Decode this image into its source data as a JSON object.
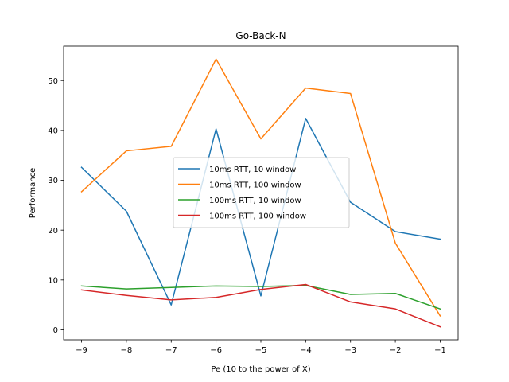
{
  "chart_data": {
    "type": "line",
    "title": "Go-Back-N",
    "xlabel": "Pe (10 to the power of X)",
    "ylabel": "Performance",
    "x": [
      -9,
      -8,
      -7,
      -6,
      -5,
      -4,
      -3,
      -2,
      -1
    ],
    "xticks": [
      "−9",
      "−8",
      "−7",
      "−6",
      "−5",
      "−4",
      "−3",
      "−2",
      "−1"
    ],
    "yticks": [
      "0",
      "10",
      "20",
      "30",
      "40",
      "50"
    ],
    "ytick_values": [
      0,
      10,
      20,
      30,
      40,
      50
    ],
    "xlim": [
      -9.4,
      -0.6
    ],
    "ylim": [
      -2.0,
      56.9
    ],
    "grid": false,
    "legend_position": "center",
    "series": [
      {
        "name": "10ms RTT, 10 window",
        "color": "#1f77b4",
        "values": [
          32.6,
          23.8,
          5.0,
          40.3,
          6.8,
          42.4,
          25.6,
          19.7,
          18.2
        ]
      },
      {
        "name": "10ms RTT, 100 window",
        "color": "#ff7f0e",
        "values": [
          27.7,
          35.9,
          36.8,
          54.3,
          38.3,
          48.5,
          47.4,
          17.4,
          2.8
        ]
      },
      {
        "name": "100ms RTT, 10 window",
        "color": "#2ca02c",
        "values": [
          8.8,
          8.2,
          8.5,
          8.8,
          8.7,
          8.9,
          7.1,
          7.3,
          4.2
        ]
      },
      {
        "name": "100ms RTT, 100 window",
        "color": "#d62728",
        "values": [
          8.0,
          6.9,
          6.0,
          6.5,
          8.1,
          9.1,
          5.6,
          4.2,
          0.6
        ]
      }
    ]
  }
}
